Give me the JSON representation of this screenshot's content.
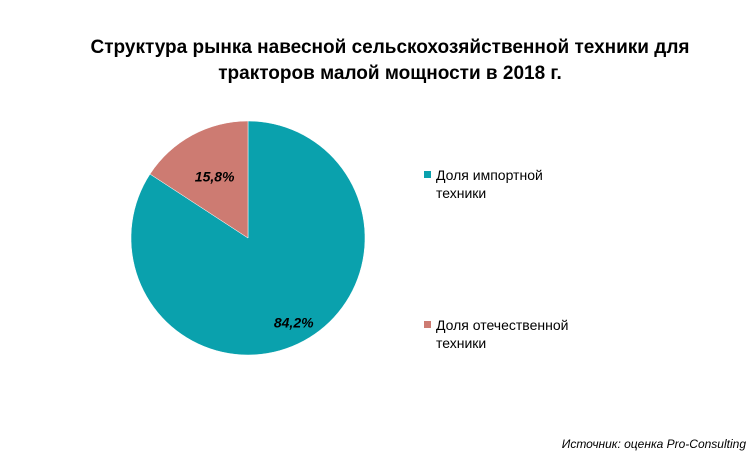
{
  "title": {
    "line1": "Структура рынка навесной сельскохозяйственной техники для",
    "line2": "тракторов малой мощности в 2018 г."
  },
  "source": "Источник: оценка Pro-Consulting",
  "colors": {
    "import": "#0aa1ad",
    "domestic": "#cd7b72"
  },
  "chart_data": {
    "type": "pie",
    "title": "Структура рынка навесной сельскохозяйственной техники для тракторов малой мощности в 2018 г.",
    "categories": [
      "Доля импортной техники",
      "Доля отечественной техники"
    ],
    "values": [
      84.2,
      15.8
    ],
    "data_labels": [
      "84,2%",
      "15,8%"
    ],
    "legend_placement": "right",
    "legend": [
      {
        "line1": "Доля импортной",
        "line2": "техники"
      },
      {
        "line1": "Доля отечественной",
        "line2": "техники"
      }
    ]
  }
}
